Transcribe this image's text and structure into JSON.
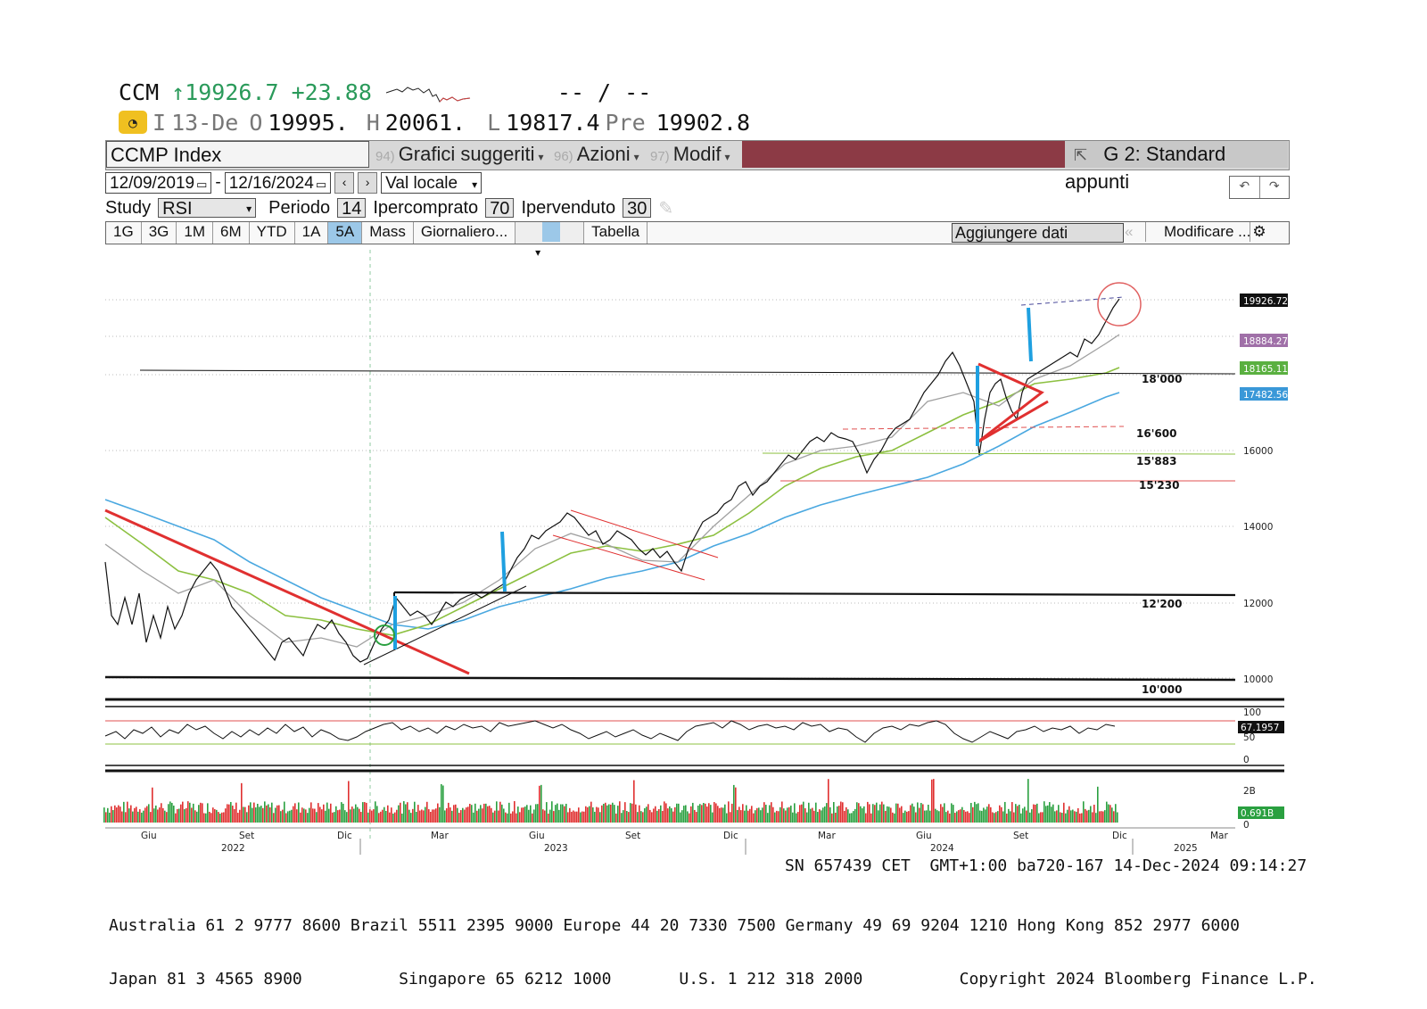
{
  "quote": {
    "ticker": "CCM",
    "last": "↑19926.7",
    "change": "+23.88",
    "bidask": "-- / --"
  },
  "ohlc": {
    "i_label": "I",
    "date": "13-De",
    "o_label": "O",
    "open": "19995.",
    "h_label": "H",
    "high": "20061.",
    "l_label": "L",
    "low": "19817.4",
    "pre_label": "Pre",
    "prev": "19902.8"
  },
  "toolbar": {
    "security": "CCMP Index",
    "menu1_num": "94)",
    "menu1": "Grafici suggeriti",
    "menu2_num": "96)",
    "menu2": "Azioni",
    "menu3_num": "97)",
    "menu3": "Modif",
    "template": "G 2: Standard appunti"
  },
  "dates": {
    "start": "12/09/2019",
    "end": "12/16/2024",
    "currency": "Val locale"
  },
  "study": {
    "label": "Study",
    "name": "RSI",
    "period_label": "Periodo",
    "period": "14",
    "overbought_label": "Ipercomprato",
    "overbought": "70",
    "oversold_label": "Ipervenduto",
    "oversold": "30"
  },
  "periods": [
    "1G",
    "3G",
    "1M",
    "6M",
    "YTD",
    "1A",
    "5A",
    "Mass",
    "Giornaliero..."
  ],
  "active_period": "5A",
  "table_btn": "Tabella",
  "add_data": "Aggiungere dati",
  "modify_btn": "Modificare ...",
  "chart_data": {
    "type": "line",
    "price_axis": [
      10000,
      12000,
      14000,
      16000
    ],
    "levels": [
      "18'000",
      "16'600",
      "15'883",
      "15'230",
      "12'200",
      "10'000"
    ],
    "tags": {
      "last": "19926.72",
      "ma_purple": "18884.27",
      "ma_green": "18165.11",
      "ma_blue": "17482.56",
      "rsi": "67.1957",
      "volume": "0.691B"
    },
    "rsi_axis": [
      "100",
      "50",
      "0"
    ],
    "volume_axis": [
      "2B",
      "0"
    ],
    "x_months": [
      "Giu",
      "Set",
      "Dic",
      "Mar",
      "Giu",
      "Set",
      "Dic",
      "Mar",
      "Giu",
      "Set",
      "Dic",
      "Mar"
    ],
    "x_years": [
      "2022",
      "2023",
      "2024",
      "2025"
    ],
    "colors": {
      "price": "#111111",
      "ma_grey": "#a0a0a0",
      "ma_green": "#8cc040",
      "ma_blue": "#4aa8e0",
      "trend_red": "#e03030",
      "impulse_blue": "#1fa0e0",
      "rsi": "#111111",
      "vol_up": "#2aa040",
      "vol_down": "#e03030"
    }
  },
  "footer": {
    "line1": "SN 657439 CET  GMT+1:00 ba720-167 14-Dec-2024 09:14:27",
    "line2": "Australia 61 2 9777 8600 Brazil 5511 2395 9000 Europe 44 20 7330 7500 Germany 49 69 9204 1210 Hong Kong 852 2977 6000",
    "line3": "Japan 81 3 4565 8900          Singapore 65 6212 1000       U.S. 1 212 318 2000          Copyright 2024 Bloomberg Finance L.P."
  }
}
